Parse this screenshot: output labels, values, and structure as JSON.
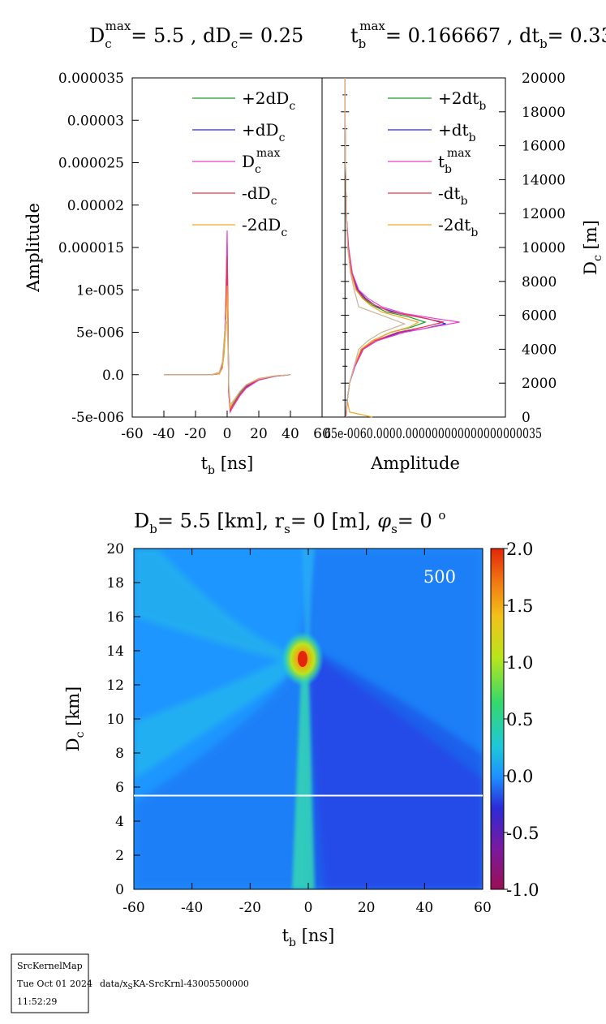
{
  "top_title": {
    "left": {
      "sym": "D",
      "sub": "c",
      "sup": "max",
      "rest": "= 5.5 , dD",
      "sub2": "c",
      "rest2": "= 0.25"
    },
    "right": {
      "sym": "t",
      "sub": "b",
      "sup": "max",
      "rest": "= 0.166667 , dt",
      "sub2": "b",
      "rest2": "= 0.33"
    }
  },
  "bottom_title": {
    "p1": "D",
    "p1_sub": "b",
    "p2": "= 5.5 [km], r",
    "p2_sub": "s",
    "p3": "= 0 [m], ",
    "phi": "φ",
    "p3_sub": "s",
    "p4": "= 0 ",
    "p4_sup": "o"
  },
  "chart_data": [
    {
      "type": "line",
      "name_role": "left-panel",
      "xlabel": {
        "base": "t",
        "sub": "b",
        "unit": " [ns]"
      },
      "ylabel": "Amplitude",
      "xlim": [
        -60,
        60
      ],
      "ylim": [
        -5e-06,
        3.5e-05
      ],
      "x_ticks": [
        "-60",
        "-40",
        "-20",
        "0",
        "20",
        "40",
        "60"
      ],
      "y_ticks": [
        "-5e-006",
        "0.0",
        "5e-006",
        "1e-005",
        "0.000015",
        "0.00002",
        "0.000025",
        "0.00003",
        "0.000035"
      ],
      "y_tick_values": [
        -5e-06,
        0,
        5e-06,
        1e-05,
        1.5e-05,
        2e-05,
        2.5e-05,
        3e-05,
        3.5e-05
      ],
      "legend": [
        {
          "base": "+2dD",
          "sub": "c",
          "sup": "",
          "color": "#1a9e2a"
        },
        {
          "base": "+dD",
          "sub": "c",
          "sup": "",
          "color": "#2a2ae6"
        },
        {
          "base": "D",
          "sub": "c",
          "sup": "max",
          "color": "#f03ccf"
        },
        {
          "base": "-dD",
          "sub": "c",
          "sup": "",
          "color": "#e6374a"
        },
        {
          "base": "-2dD",
          "sub": "c",
          "sup": "",
          "color": "#f5a623"
        }
      ],
      "series": [
        {
          "color": "#1a9e2a",
          "x": [
            -40,
            -10,
            -5,
            -3,
            -2,
            -1,
            0,
            0.5,
            1,
            2,
            3,
            5,
            8,
            12,
            20,
            30,
            40
          ],
          "y": [
            0,
            0,
            1e-07,
            8e-07,
            2.5e-06,
            5.5e-06,
            1.1e-05,
            6e-06,
            -1.5e-06,
            -4e-06,
            -3.6e-06,
            -3e-06,
            -2.1e-06,
            -1.3e-06,
            -5e-07,
            -1.5e-07,
            0
          ]
        },
        {
          "color": "#2a2ae6",
          "x": [
            -40,
            -10,
            -5,
            -3,
            -2,
            -1,
            0,
            0.5,
            1,
            2,
            3,
            5,
            8,
            12,
            20,
            30,
            40
          ],
          "y": [
            0,
            0,
            1e-07,
            1e-06,
            3e-06,
            7e-06,
            1.55e-05,
            7e-06,
            -2e-06,
            -4.3e-06,
            -3.9e-06,
            -3.3e-06,
            -2.4e-06,
            -1.5e-06,
            -6e-07,
            -2e-07,
            0
          ]
        },
        {
          "color": "#f03ccf",
          "x": [
            -40,
            -10,
            -5,
            -3,
            -2,
            -1,
            0,
            0.5,
            1,
            2,
            3,
            5,
            8,
            12,
            20,
            30,
            40
          ],
          "y": [
            0,
            0,
            1e-07,
            1.1e-06,
            3.2e-06,
            7.5e-06,
            1.7e-05,
            7e-06,
            -2.2e-06,
            -4.4e-06,
            -4e-06,
            -3.4e-06,
            -2.5e-06,
            -1.6e-06,
            -6.5e-07,
            -2e-07,
            0
          ]
        },
        {
          "color": "#e6374a",
          "x": [
            -40,
            -10,
            -5,
            -3,
            -2,
            -1,
            0,
            0.5,
            1,
            2,
            3,
            5,
            8,
            12,
            20,
            30,
            40
          ],
          "y": [
            0,
            0,
            1e-07,
            9e-07,
            2.8e-06,
            6.5e-06,
            1.4e-05,
            6.5e-06,
            -2e-06,
            -4.2e-06,
            -3.8e-06,
            -3.2e-06,
            -2.3e-06,
            -1.4e-06,
            -5.5e-07,
            -1.8e-07,
            0
          ]
        },
        {
          "color": "#f5a623",
          "x": [
            -40,
            -10,
            -5,
            -3,
            -2,
            -1,
            0,
            0.5,
            1,
            2,
            3,
            5,
            8,
            12,
            20,
            30,
            40
          ],
          "y": [
            0,
            0,
            1e-07,
            8e-07,
            2.4e-06,
            5.2e-06,
            1.05e-05,
            6e-06,
            -1.6e-06,
            -3.9e-06,
            -3.5e-06,
            -2.9e-06,
            -2e-06,
            -1.2e-06,
            -4.5e-07,
            -1.4e-07,
            0
          ]
        },
        {
          "color": "#c8b49a",
          "x": [
            -40,
            -10,
            -5,
            -3,
            -2,
            -1,
            0,
            0.5,
            1,
            2,
            3,
            5,
            8,
            12,
            20,
            30,
            40
          ],
          "y": [
            0,
            0,
            3e-07,
            1.5e-06,
            4e-06,
            6.5e-06,
            6e-06,
            3e-06,
            -1e-06,
            -3.5e-06,
            -3.3e-06,
            -2.8e-06,
            -2e-06,
            -1.2e-06,
            -5e-07,
            -1.5e-07,
            0
          ]
        }
      ]
    },
    {
      "type": "line",
      "name_role": "right-panel",
      "xlabel": "Amplitude",
      "ylabel": {
        "base": "D",
        "sub": "c",
        "unit": " [m]"
      },
      "xlim": [
        -5e-06,
        3.5e-05
      ],
      "ylim": [
        0,
        20000
      ],
      "x_ticks_text": "65e-0060.0000.000000000000000000035",
      "y_ticks": [
        "0",
        "2000",
        "4000",
        "6000",
        "8000",
        "10000",
        "12000",
        "14000",
        "16000",
        "18000",
        "20000"
      ],
      "y_tick_values": [
        0,
        2000,
        4000,
        6000,
        8000,
        10000,
        12000,
        14000,
        16000,
        18000,
        20000
      ],
      "legend": [
        {
          "base": "+2dt",
          "sub": "b",
          "sup": "",
          "color": "#1a9e2a"
        },
        {
          "base": "+dt",
          "sub": "b",
          "sup": "",
          "color": "#2a2ae6"
        },
        {
          "base": "t",
          "sub": "b",
          "sup": "max",
          "color": "#f03ccf"
        },
        {
          "base": "-dt",
          "sub": "b",
          "sup": "",
          "color": "#e6374a"
        },
        {
          "base": "-2dt",
          "sub": "b",
          "sup": "",
          "color": "#f5a623"
        }
      ],
      "series": [
        {
          "color": "#1a9e2a",
          "y": [
            0,
            1000,
            2000,
            3000,
            4000,
            4500,
            5000,
            5300,
            5600,
            5900,
            6200,
            6600,
            7000,
            7500,
            8500,
            10000,
            12000,
            15000,
            18000,
            20000
          ],
          "x": [
            2e-07,
            5e-07,
            1e-06,
            2e-06,
            3.6e-06,
            6e-06,
            1e-05,
            1.45e-05,
            1.75e-05,
            1.4e-05,
            9e-06,
            6e-06,
            4e-06,
            2.5e-06,
            1.4e-06,
            7e-07,
            3e-07,
            1e-07,
            0,
            0
          ]
        },
        {
          "color": "#2a2ae6",
          "y": [
            0,
            1000,
            2000,
            3000,
            4000,
            4500,
            5000,
            5200,
            5500,
            5800,
            6100,
            6500,
            7000,
            7500,
            8500,
            10000,
            12000,
            15000,
            18000,
            20000
          ],
          "x": [
            2e-07,
            5e-07,
            1e-06,
            2.2e-06,
            4e-06,
            7e-06,
            1.2e-05,
            1.7e-05,
            2.2e-05,
            1.8e-05,
            1.2e-05,
            7e-06,
            4.5e-06,
            2.8e-06,
            1.5e-06,
            7e-07,
            3e-07,
            1e-07,
            0,
            0
          ]
        },
        {
          "color": "#f03ccf",
          "y": [
            0,
            1000,
            2000,
            3000,
            4000,
            4500,
            5000,
            5300,
            5600,
            5800,
            6100,
            6500,
            7000,
            7500,
            8500,
            10000,
            12000,
            15000,
            18000,
            20000
          ],
          "x": [
            2e-07,
            5e-07,
            1e-06,
            2.2e-06,
            4e-06,
            7e-06,
            1.3e-05,
            1.9e-05,
            2.5e-05,
            2e-05,
            1.3e-05,
            8e-06,
            5e-06,
            3e-06,
            1.6e-06,
            8e-07,
            3e-07,
            1e-07,
            0,
            0
          ]
        },
        {
          "color": "#e6374a",
          "y": [
            0,
            1000,
            2000,
            3000,
            4000,
            4500,
            5000,
            5300,
            5600,
            5900,
            6200,
            6600,
            7000,
            7500,
            8500,
            10000,
            12000,
            15000,
            18000,
            20000
          ],
          "x": [
            2e-07,
            5e-07,
            1e-06,
            2e-06,
            3.8e-06,
            6.5e-06,
            1.15e-05,
            1.7e-05,
            2.15e-05,
            1.6e-05,
            1e-05,
            6.5e-06,
            4.2e-06,
            2.6e-06,
            1.4e-06,
            7e-07,
            3e-07,
            1e-07,
            0,
            0
          ]
        },
        {
          "color": "#f5a623",
          "y": [
            0,
            300,
            1000,
            2000,
            3000,
            4000,
            4500,
            5000,
            5300,
            5600,
            5900,
            6200,
            6600,
            7000,
            7500,
            8500,
            10000,
            12000,
            15000,
            18000,
            20000
          ],
          "x": [
            6e-06,
            1e-06,
            5e-07,
            1e-06,
            2e-06,
            3.5e-06,
            6e-06,
            1e-05,
            1.4e-05,
            1.6e-05,
            1.2e-05,
            8e-06,
            5.5e-06,
            3.8e-06,
            2.4e-06,
            1.3e-06,
            6e-07,
            3e-07,
            1e-07,
            0,
            0
          ]
        },
        {
          "color": "#c8b49a",
          "y": [
            0,
            1000,
            2000,
            3000,
            4000,
            4500,
            5000,
            5500,
            6000,
            6500,
            7000,
            7500,
            8500,
            10000,
            12000,
            15000,
            18000,
            20000
          ],
          "x": [
            3e-07,
            5e-07,
            1e-06,
            2e-06,
            3e-06,
            5e-06,
            8e-06,
            1.3e-05,
            8e-06,
            3e-06,
            2.5e-06,
            2e-06,
            1.2e-06,
            6e-07,
            3e-07,
            1e-07,
            0,
            0
          ]
        }
      ]
    },
    {
      "type": "heatmap",
      "name_role": "kernel-map",
      "xlabel": {
        "base": "t",
        "sub": "b",
        "unit": " [ns]"
      },
      "ylabel": {
        "base": "D",
        "sub": "c",
        "unit": " [km]"
      },
      "xlim": [
        -60,
        60
      ],
      "ylim": [
        0,
        20
      ],
      "x_ticks": [
        "-60",
        "-40",
        "-20",
        "0",
        "20",
        "40",
        "60"
      ],
      "x_tick_values": [
        -60,
        -40,
        -20,
        0,
        20,
        40,
        60
      ],
      "y_ticks": [
        "0",
        "2",
        "4",
        "6",
        "8",
        "10",
        "12",
        "14",
        "16",
        "18",
        "20"
      ],
      "y_tick_values": [
        0,
        2,
        4,
        6,
        8,
        10,
        12,
        14,
        16,
        18,
        20
      ],
      "annotation": "500",
      "reference_line_y": 5.5,
      "colorbar": {
        "range": [
          -1.0,
          2.0
        ],
        "ticks": [
          "-1.0",
          "-0.5",
          "0.0",
          "0.5",
          "1.0",
          "1.5",
          "2.0"
        ],
        "tick_values": [
          -1.0,
          -0.5,
          0.0,
          0.5,
          1.0,
          1.5,
          2.0
        ]
      }
    }
  ],
  "footer": {
    "box_line1": "SrcKernelMap",
    "box_line2": "Tue Oct 01 2024",
    "box_line3": "11:52:29",
    "path_prefix": "data/x",
    "path_sub": "S",
    "path_rest": "KA-SrcKrnl-43005500000"
  }
}
